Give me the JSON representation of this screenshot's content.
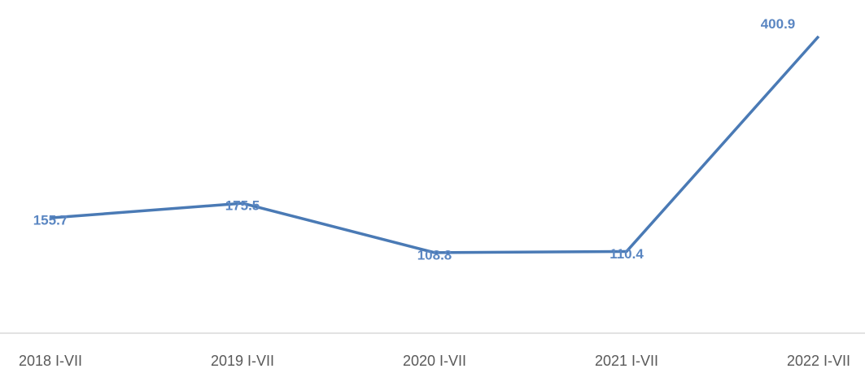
{
  "chart_data": {
    "type": "line",
    "categories": [
      "2018 I-VII",
      "2019 I-VII",
      "2020 I-VII",
      "2021 I-VII",
      "2022 I-VII"
    ],
    "series": [
      {
        "name": null,
        "color": "#4a7ab5",
        "values": [
          155.7,
          175.5,
          108.8,
          110.4,
          400.9
        ]
      }
    ],
    "ylim": [
      0,
      450
    ]
  }
}
